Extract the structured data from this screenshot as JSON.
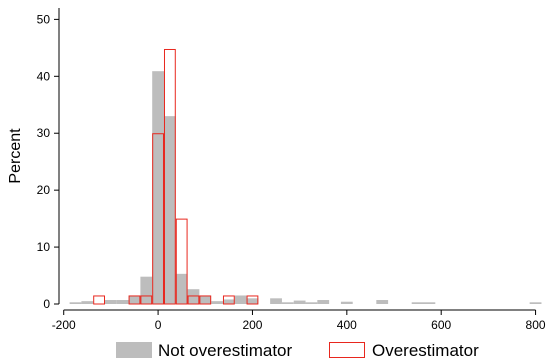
{
  "chart_data": {
    "type": "histogram",
    "xlabel": "",
    "ylabel": "Percent",
    "xlim": [
      -210,
      820
    ],
    "ylim": [
      0,
      52
    ],
    "x_ticks": [
      -200,
      0,
      200,
      400,
      600,
      800
    ],
    "y_ticks": [
      0,
      10,
      20,
      30,
      40,
      50
    ],
    "bin_width": 25,
    "grid": false,
    "legend_position": "bottom",
    "series": [
      {
        "name": "Not overestimator",
        "style": "filled",
        "color": "#bdbdbd",
        "bins": [
          {
            "x0": -187.5,
            "value": 0.3
          },
          {
            "x0": -162.5,
            "value": 0.5
          },
          {
            "x0": -112.5,
            "value": 0.7
          },
          {
            "x0": -87.5,
            "value": 0.7
          },
          {
            "x0": -62.5,
            "value": 1.5
          },
          {
            "x0": -37.5,
            "value": 4.8
          },
          {
            "x0": -12.5,
            "value": 40.9
          },
          {
            "x0": 12.5,
            "value": 33.0
          },
          {
            "x0": 37.5,
            "value": 5.3
          },
          {
            "x0": 62.5,
            "value": 2.6
          },
          {
            "x0": 87.5,
            "value": 1.5
          },
          {
            "x0": 112.5,
            "value": 0.5
          },
          {
            "x0": 137.5,
            "value": 0.8
          },
          {
            "x0": 162.5,
            "value": 1.5
          },
          {
            "x0": 187.5,
            "value": 1.0
          },
          {
            "x0": 237.5,
            "value": 1.0
          },
          {
            "x0": 262.5,
            "value": 0.3
          },
          {
            "x0": 287.5,
            "value": 0.6
          },
          {
            "x0": 312.5,
            "value": 0.3
          },
          {
            "x0": 337.5,
            "value": 0.7
          },
          {
            "x0": 387.5,
            "value": 0.4
          },
          {
            "x0": 462.5,
            "value": 0.7
          },
          {
            "x0": 537.5,
            "value": 0.3
          },
          {
            "x0": 562.5,
            "value": 0.3
          },
          {
            "x0": 787.5,
            "value": 0.3
          }
        ]
      },
      {
        "name": "Overestimator",
        "style": "outline",
        "color": "#e8271e",
        "bins": [
          {
            "x0": -137.5,
            "value": 1.5
          },
          {
            "x0": -62.5,
            "value": 1.5
          },
          {
            "x0": -37.5,
            "value": 1.5
          },
          {
            "x0": -12.5,
            "value": 30.0
          },
          {
            "x0": 12.5,
            "value": 44.8
          },
          {
            "x0": 37.5,
            "value": 15.0
          },
          {
            "x0": 62.5,
            "value": 1.5
          },
          {
            "x0": 87.5,
            "value": 1.5
          },
          {
            "x0": 137.5,
            "value": 1.5
          },
          {
            "x0": 187.5,
            "value": 1.5
          }
        ]
      }
    ]
  }
}
